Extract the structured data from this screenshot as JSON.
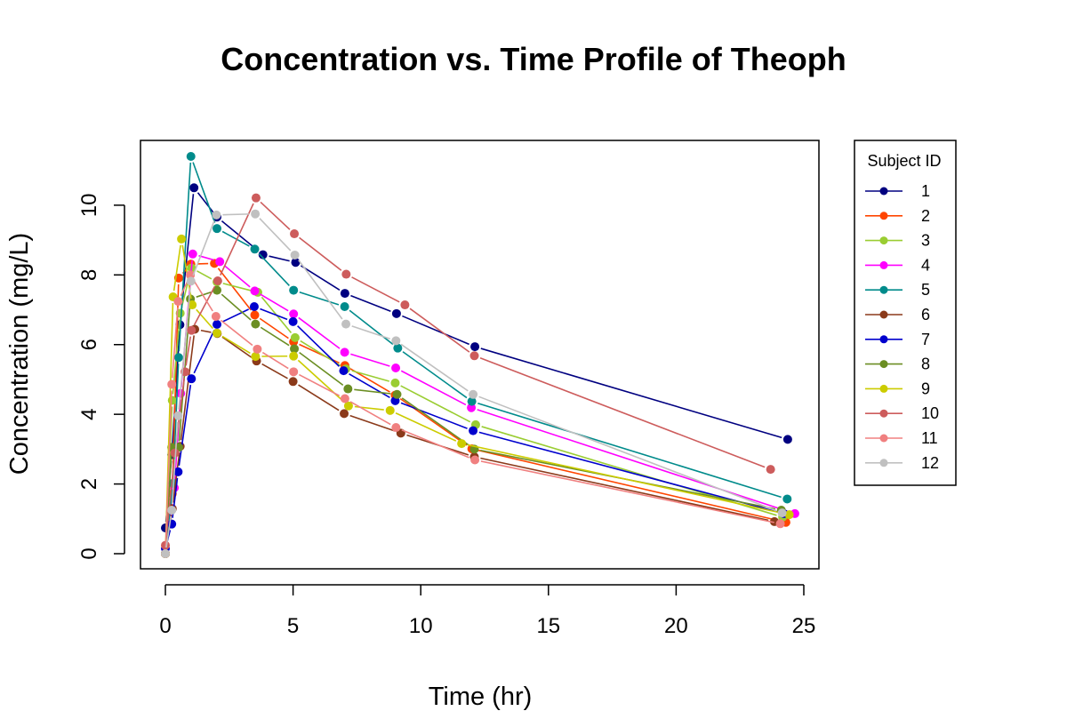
{
  "chart_data": {
    "type": "line",
    "title": "Concentration vs. Time Profile of Theoph",
    "xlabel": "Time (hr)",
    "ylabel": "Concentration (mg/L)",
    "xlim": [
      0,
      25
    ],
    "ylim": [
      0,
      11.4
    ],
    "x_ticks": [
      0,
      5,
      10,
      15,
      20,
      25
    ],
    "y_ticks": [
      0,
      2,
      4,
      6,
      8,
      10
    ],
    "grid": false,
    "legend": {
      "title": "Subject ID",
      "position": "right"
    },
    "series": [
      {
        "name": "1",
        "color": "#000080",
        "x": [
          0,
          0.25,
          0.57,
          1.12,
          2.02,
          3.82,
          5.1,
          7.03,
          9.05,
          12.12,
          24.37
        ],
        "y": [
          0.74,
          2.84,
          6.57,
          10.5,
          9.66,
          8.58,
          8.36,
          7.47,
          6.89,
          5.94,
          3.28
        ]
      },
      {
        "name": "2",
        "color": "#FF4500",
        "x": [
          0,
          0.27,
          0.52,
          1.0,
          1.92,
          3.5,
          5.02,
          7.03,
          9.0,
          12.0,
          24.3
        ],
        "y": [
          0,
          1.72,
          7.91,
          8.31,
          8.33,
          6.85,
          6.08,
          5.4,
          4.55,
          3.01,
          0.9
        ]
      },
      {
        "name": "3",
        "color": "#9ACD32",
        "x": [
          0,
          0.27,
          0.58,
          1.02,
          2.02,
          3.62,
          5.08,
          7.07,
          9.0,
          12.15,
          24.17
        ],
        "y": [
          0,
          4.4,
          6.9,
          8.2,
          7.8,
          7.5,
          6.2,
          5.3,
          4.9,
          3.7,
          1.05
        ]
      },
      {
        "name": "4",
        "color": "#FF00FF",
        "x": [
          0,
          0.35,
          0.6,
          1.07,
          2.13,
          3.5,
          5.02,
          7.02,
          9.02,
          11.98,
          24.65
        ],
        "y": [
          0,
          1.89,
          4.6,
          8.6,
          8.38,
          7.54,
          6.88,
          5.78,
          5.33,
          4.19,
          1.15
        ]
      },
      {
        "name": "5",
        "color": "#008B8B",
        "x": [
          0,
          0.3,
          0.52,
          1.0,
          2.02,
          3.5,
          5.02,
          7.02,
          9.1,
          12.0,
          24.35
        ],
        "y": [
          0,
          2.02,
          5.63,
          11.4,
          9.33,
          8.74,
          7.56,
          7.09,
          5.9,
          4.37,
          1.57
        ]
      },
      {
        "name": "6",
        "color": "#8B3A1A",
        "x": [
          0,
          0.27,
          0.58,
          1.15,
          2.03,
          3.57,
          5.0,
          7.0,
          9.22,
          12.1,
          23.85
        ],
        "y": [
          0,
          1.29,
          3.08,
          6.44,
          6.32,
          5.53,
          4.94,
          4.02,
          3.46,
          2.78,
          0.92
        ]
      },
      {
        "name": "7",
        "color": "#0000CD",
        "x": [
          0,
          0.25,
          0.5,
          1.02,
          2.02,
          3.48,
          5.0,
          6.98,
          9.0,
          12.05,
          24.22
        ],
        "y": [
          0.15,
          0.85,
          2.35,
          5.02,
          6.58,
          7.09,
          6.66,
          5.25,
          4.39,
          3.53,
          1.15
        ]
      },
      {
        "name": "8",
        "color": "#6B8E23",
        "x": [
          0,
          0.25,
          0.52,
          0.98,
          2.02,
          3.53,
          5.05,
          7.15,
          9.07,
          12.1,
          24.12
        ],
        "y": [
          0,
          3.05,
          3.05,
          7.31,
          7.56,
          6.59,
          5.88,
          4.73,
          4.57,
          3.0,
          1.25
        ]
      },
      {
        "name": "9",
        "color": "#CCCC00",
        "x": [
          0,
          0.3,
          0.63,
          1.05,
          2.02,
          3.53,
          5.02,
          7.17,
          8.8,
          11.6,
          24.43
        ],
        "y": [
          0,
          7.37,
          9.03,
          7.14,
          6.33,
          5.66,
          5.67,
          4.24,
          4.11,
          3.16,
          1.12
        ]
      },
      {
        "name": "10",
        "color": "#CD5C5C",
        "x": [
          0,
          0.37,
          0.77,
          1.02,
          2.05,
          3.55,
          5.05,
          7.08,
          9.38,
          12.1,
          23.7
        ],
        "y": [
          0.24,
          2.89,
          5.22,
          6.41,
          7.83,
          10.21,
          9.18,
          8.02,
          7.14,
          5.68,
          2.42
        ]
      },
      {
        "name": "11",
        "color": "#F08080",
        "x": [
          0,
          0.25,
          0.5,
          0.98,
          1.98,
          3.6,
          5.02,
          7.03,
          9.03,
          12.12,
          24.08
        ],
        "y": [
          0,
          4.86,
          7.24,
          8.0,
          6.81,
          5.87,
          5.22,
          4.45,
          3.62,
          2.69,
          0.86
        ]
      },
      {
        "name": "12",
        "color": "#C0C0C0",
        "x": [
          0,
          0.25,
          0.5,
          1.0,
          2.0,
          3.52,
          5.07,
          7.07,
          9.03,
          12.05,
          24.15
        ],
        "y": [
          0,
          1.25,
          3.96,
          7.82,
          9.72,
          9.75,
          8.57,
          6.59,
          6.11,
          4.57,
          1.17
        ]
      }
    ]
  }
}
